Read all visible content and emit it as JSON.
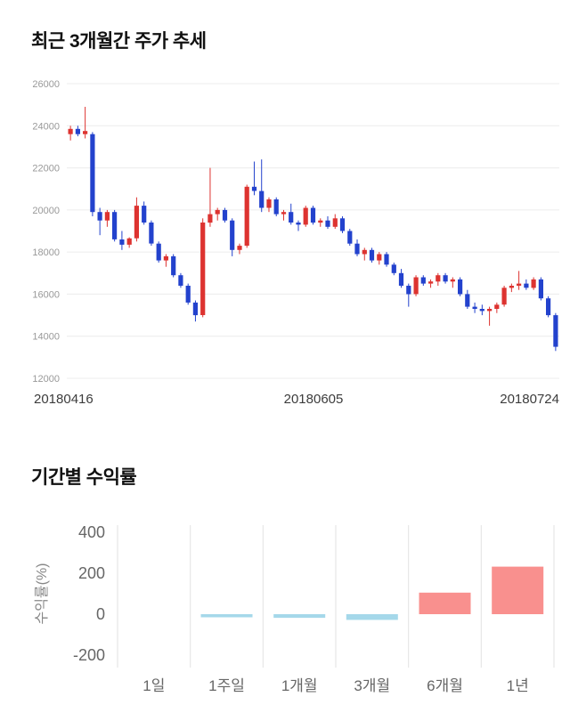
{
  "page": {
    "title_price": "최근 3개월간 주가 추세",
    "title_returns": "기간별 수익률"
  },
  "colors": {
    "up": "#dd3330",
    "down": "#2342cd",
    "bar_positive": "#f9908e",
    "bar_negative": "#a5d8ea",
    "grid": "#ececec",
    "bar_grid": "#e2e2e2",
    "axis_text": "#999999",
    "date_text": "#3c3c3c",
    "bar_axis_text": "#666666",
    "bar_ylabel_text": "#888888"
  },
  "chart_data": [
    {
      "type": "candlestick",
      "title": "최근 3개월간 주가 추세",
      "ylim": [
        12000,
        26000
      ],
      "yticks": [
        26000,
        24000,
        22000,
        20000,
        18000,
        16000,
        14000,
        12000
      ],
      "xtick_labels": [
        "20180416",
        "20180605",
        "20180724"
      ],
      "grid": true,
      "dates": [
        "20180416",
        "20180417",
        "20180418",
        "20180419",
        "20180420",
        "20180423",
        "20180424",
        "20180425",
        "20180426",
        "20180427",
        "20180430",
        "20180502",
        "20180503",
        "20180504",
        "20180508",
        "20180509",
        "20180510",
        "20180511",
        "20180514",
        "20180515",
        "20180516",
        "20180517",
        "20180518",
        "20180521",
        "20180523",
        "20180524",
        "20180525",
        "20180528",
        "20180529",
        "20180530",
        "20180531",
        "20180601",
        "20180604",
        "20180605",
        "20180607",
        "20180608",
        "20180611",
        "20180612",
        "20180614",
        "20180615",
        "20180618",
        "20180619",
        "20180620",
        "20180621",
        "20180622",
        "20180625",
        "20180626",
        "20180627",
        "20180628",
        "20180629",
        "20180702",
        "20180703",
        "20180704",
        "20180705",
        "20180706",
        "20180709",
        "20180710",
        "20180711",
        "20180712",
        "20180713",
        "20180716",
        "20180717",
        "20180718",
        "20180719",
        "20180720",
        "20180723",
        "20180724"
      ],
      "ohlc": [
        [
          23600,
          24000,
          23300,
          23850
        ],
        [
          23850,
          24000,
          23500,
          23600
        ],
        [
          23600,
          24900,
          23400,
          23750
        ],
        [
          23600,
          23700,
          19700,
          19900
        ],
        [
          19900,
          20100,
          18800,
          19500
        ],
        [
          19500,
          20000,
          19200,
          19900
        ],
        [
          19900,
          20000,
          18500,
          18600
        ],
        [
          18600,
          19000,
          18100,
          18350
        ],
        [
          18350,
          18700,
          18200,
          18650
        ],
        [
          18650,
          20600,
          18500,
          20200
        ],
        [
          20200,
          20400,
          19300,
          19400
        ],
        [
          19400,
          19500,
          18300,
          18400
        ],
        [
          18400,
          18500,
          17500,
          17600
        ],
        [
          17600,
          17900,
          17300,
          17800
        ],
        [
          17800,
          17900,
          16800,
          16900
        ],
        [
          16900,
          17000,
          16300,
          16400
        ],
        [
          16400,
          16500,
          15500,
          15600
        ],
        [
          15600,
          15700,
          14700,
          15000
        ],
        [
          15000,
          19600,
          14900,
          19400
        ],
        [
          19400,
          22000,
          19200,
          19800
        ],
        [
          19800,
          20100,
          19500,
          20000
        ],
        [
          20000,
          20100,
          19400,
          19500
        ],
        [
          19500,
          19600,
          17800,
          18100
        ],
        [
          18100,
          18400,
          17900,
          18300
        ],
        [
          18300,
          21200,
          18200,
          21100
        ],
        [
          21100,
          22300,
          20700,
          20900
        ],
        [
          20900,
          22400,
          19900,
          20100
        ],
        [
          20100,
          20600,
          19900,
          20500
        ],
        [
          20500,
          20600,
          19700,
          19800
        ],
        [
          19800,
          20000,
          19500,
          19900
        ],
        [
          19900,
          20300,
          19300,
          19400
        ],
        [
          19400,
          19500,
          19000,
          19300
        ],
        [
          19300,
          20200,
          19200,
          20100
        ],
        [
          20100,
          20200,
          19300,
          19400
        ],
        [
          19400,
          19600,
          19200,
          19500
        ],
        [
          19500,
          19700,
          19100,
          19200
        ],
        [
          19200,
          19800,
          19100,
          19600
        ],
        [
          19600,
          19700,
          18900,
          19000
        ],
        [
          19000,
          19100,
          18300,
          18400
        ],
        [
          18400,
          18600,
          17800,
          17900
        ],
        [
          17900,
          18200,
          17600,
          18100
        ],
        [
          18100,
          18200,
          17500,
          17600
        ],
        [
          17600,
          18000,
          17400,
          17900
        ],
        [
          17900,
          18000,
          17300,
          17400
        ],
        [
          17400,
          17500,
          16900,
          17000
        ],
        [
          17000,
          17200,
          16300,
          16400
        ],
        [
          16400,
          16500,
          15400,
          16000
        ],
        [
          16000,
          16900,
          15900,
          16800
        ],
        [
          16800,
          16900,
          16400,
          16500
        ],
        [
          16500,
          16700,
          16300,
          16600
        ],
        [
          16600,
          17000,
          16400,
          16900
        ],
        [
          16900,
          17000,
          16500,
          16600
        ],
        [
          16600,
          16800,
          16300,
          16700
        ],
        [
          16700,
          16800,
          15900,
          16000
        ],
        [
          16000,
          16200,
          15300,
          15400
        ],
        [
          15400,
          15600,
          15100,
          15300
        ],
        [
          15300,
          15500,
          15000,
          15200
        ],
        [
          15200,
          15400,
          14500,
          15300
        ],
        [
          15300,
          15600,
          15100,
          15500
        ],
        [
          15500,
          16400,
          15400,
          16300
        ],
        [
          16300,
          16500,
          16100,
          16400
        ],
        [
          16400,
          17100,
          16200,
          16500
        ],
        [
          16500,
          16700,
          16200,
          16300
        ],
        [
          16300,
          16800,
          16200,
          16700
        ],
        [
          16700,
          16800,
          15700,
          15800
        ],
        [
          15800,
          15900,
          14900,
          15000
        ],
        [
          15000,
          15100,
          13300,
          13500
        ]
      ]
    },
    {
      "type": "bar",
      "categories": [
        "1일",
        "1주일",
        "1개월",
        "3개월",
        "6개월",
        "1년"
      ],
      "values": [
        0,
        -15,
        -18,
        -28,
        105,
        232
      ],
      "title": "기간별 수익률",
      "xlabel": "",
      "ylabel": "수익률(%)",
      "yticks": [
        400,
        200,
        0,
        -200
      ],
      "ylim": [
        -200,
        400
      ],
      "grid": "vertical-only",
      "legend": "none"
    }
  ]
}
